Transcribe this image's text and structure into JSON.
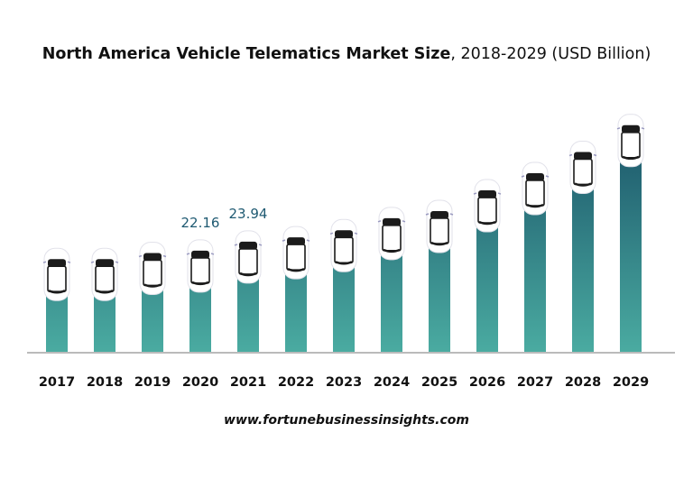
{
  "chart_data": {
    "type": "bar",
    "title_bold": "North America Vehicle Telematics Market Size",
    "title_rest": ", 2018-2029 (USD Billion)",
    "categories": [
      "2017",
      "2018",
      "2019",
      "2020",
      "2021",
      "2022",
      "2023",
      "2024",
      "2025",
      "2026",
      "2027",
      "2028",
      "2029"
    ],
    "values": [
      20.5,
      20.5,
      21.7,
      22.16,
      23.94,
      24.8,
      26.2,
      28.6,
      30.0,
      34.1,
      37.5,
      41.7,
      47.0
    ],
    "data_labels": {
      "2020": "22.16",
      "2021": "23.94"
    },
    "ylim": [
      0,
      50
    ],
    "grid": false,
    "colors": {
      "bar_top": "#154a62",
      "bar_bottom": "#4aaba1",
      "label": "#1f5a72",
      "axis": "#bbbbbb"
    }
  },
  "footer": "www.fortunebusinessinsights.com"
}
